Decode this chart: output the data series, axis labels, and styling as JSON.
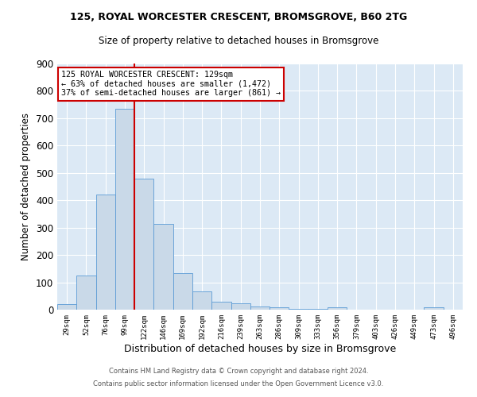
{
  "title1": "125, ROYAL WORCESTER CRESCENT, BROMSGROVE, B60 2TG",
  "title2": "Size of property relative to detached houses in Bromsgrove",
  "xlabel": "Distribution of detached houses by size in Bromsgrove",
  "ylabel": "Number of detached properties",
  "bar_color": "#c9d9e8",
  "bar_edge_color": "#5b9bd5",
  "bins": [
    "29sqm",
    "52sqm",
    "76sqm",
    "99sqm",
    "122sqm",
    "146sqm",
    "169sqm",
    "192sqm",
    "216sqm",
    "239sqm",
    "263sqm",
    "286sqm",
    "309sqm",
    "333sqm",
    "356sqm",
    "379sqm",
    "403sqm",
    "426sqm",
    "449sqm",
    "473sqm",
    "496sqm"
  ],
  "values": [
    20,
    125,
    420,
    735,
    480,
    315,
    135,
    68,
    28,
    22,
    12,
    10,
    4,
    4,
    10,
    0,
    0,
    0,
    0,
    10,
    0
  ],
  "vline_color": "#cc0000",
  "annotation_line1": "125 ROYAL WORCESTER CRESCENT: 129sqm",
  "annotation_line2": "← 63% of detached houses are smaller (1,472)",
  "annotation_line3": "37% of semi-detached houses are larger (861) →",
  "annotation_box_color": "white",
  "annotation_box_edge_color": "#cc0000",
  "footer1": "Contains HM Land Registry data © Crown copyright and database right 2024.",
  "footer2": "Contains public sector information licensed under the Open Government Licence v3.0.",
  "background_color": "#dce9f5",
  "ylim": [
    0,
    900
  ],
  "yticks": [
    0,
    100,
    200,
    300,
    400,
    500,
    600,
    700,
    800,
    900
  ]
}
